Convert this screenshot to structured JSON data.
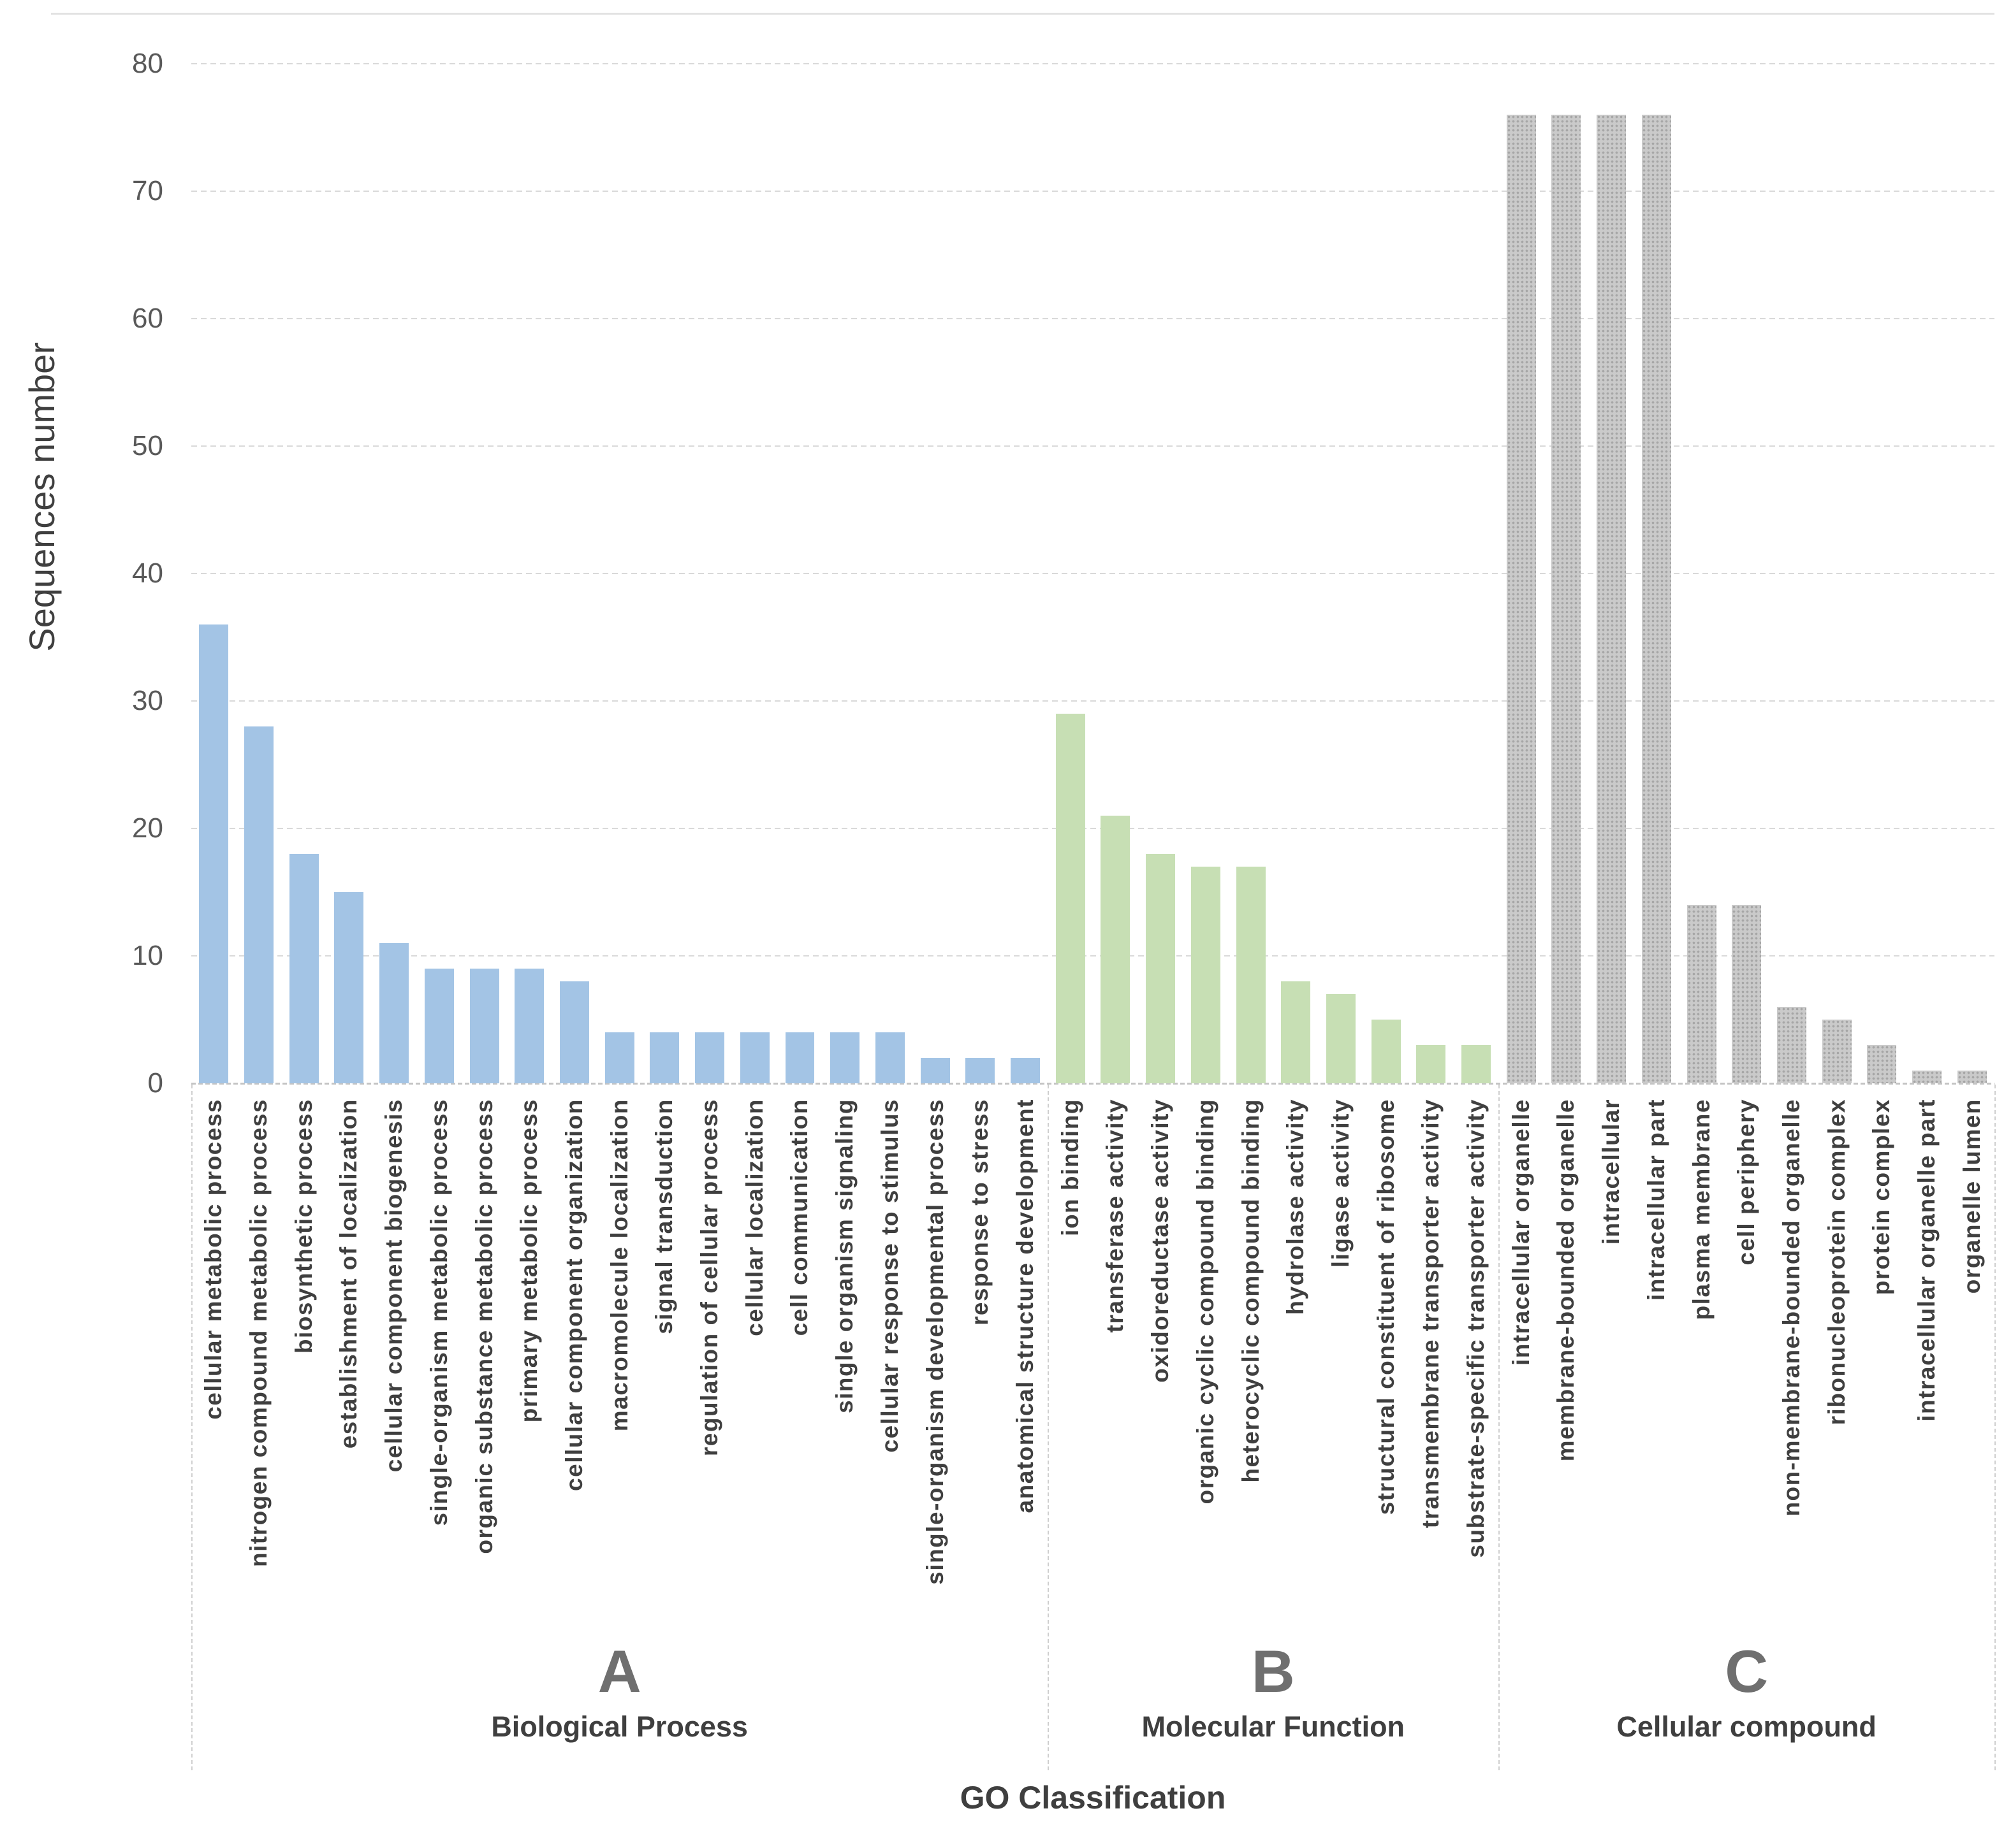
{
  "chart_data": {
    "type": "bar",
    "title": "",
    "xlabel": "GO Classification",
    "ylabel": "Sequences number",
    "ylim": [
      0,
      84
    ],
    "yticks": [
      0,
      10,
      20,
      30,
      40,
      50,
      60,
      70,
      80
    ],
    "grid": true,
    "legend_position": "none",
    "groups": [
      {
        "letter": "A",
        "name": "Biological Process",
        "color": "#a3c4e5",
        "pattern": "solid",
        "categories": [
          "cellular metabolic process",
          "nitrogen compound metabolic process",
          "biosynthetic process",
          "establishment of localization",
          "cellular component biogenesis",
          "single-organism metabolic process",
          "organic substance metabolic process",
          "primary metabolic process",
          "cellular component organization",
          "macromolecule localization",
          "signal transduction",
          "regulation of cellular process",
          "cellular localization",
          "cell communication",
          "single organism signaling",
          "cellular response to stimulus",
          "single-organism developmental process",
          "response to stress",
          "anatomical structure development"
        ],
        "values": [
          36,
          28,
          18,
          15,
          11,
          9,
          9,
          9,
          8,
          4,
          4,
          4,
          4,
          4,
          4,
          4,
          2,
          2,
          2
        ]
      },
      {
        "letter": "B",
        "name": "Molecular Function",
        "color": "#c7dfb4",
        "pattern": "solid",
        "categories": [
          "ion binding",
          "transferase activity",
          "oxidoreductase activity",
          "organic cyclic compound binding",
          "heterocyclic compound binding",
          "hydrolase activity",
          "ligase activity",
          "structural constituent of ribosome",
          "transmembrane transporter activity",
          "substrate-specific transporter activity"
        ],
        "values": [
          29,
          21,
          18,
          17,
          17,
          8,
          7,
          5,
          3,
          3
        ]
      },
      {
        "letter": "C",
        "name": "Cellular compound",
        "color": "#cacaca",
        "pattern": "dots",
        "categories": [
          "intracellular organelle",
          "membrane-bounded organelle",
          "intracellular",
          "intracellular part",
          "plasma membrane",
          "cell periphery",
          "non-membrane-bounded organelle",
          "ribonucleoprotein complex",
          "protein complex",
          "intracellular organelle part",
          "organelle lumen"
        ],
        "values": [
          76,
          76,
          76,
          76,
          14,
          14,
          6,
          5,
          3,
          1,
          1
        ]
      }
    ]
  },
  "styles": {
    "grid_color": "#d9d9d9",
    "axis_color": "#c4c4c4",
    "tick_text_color": "#595959",
    "label_text_color": "#3f3f3f",
    "group_letter_color": "#6f6f6f",
    "background": "#ffffff"
  }
}
